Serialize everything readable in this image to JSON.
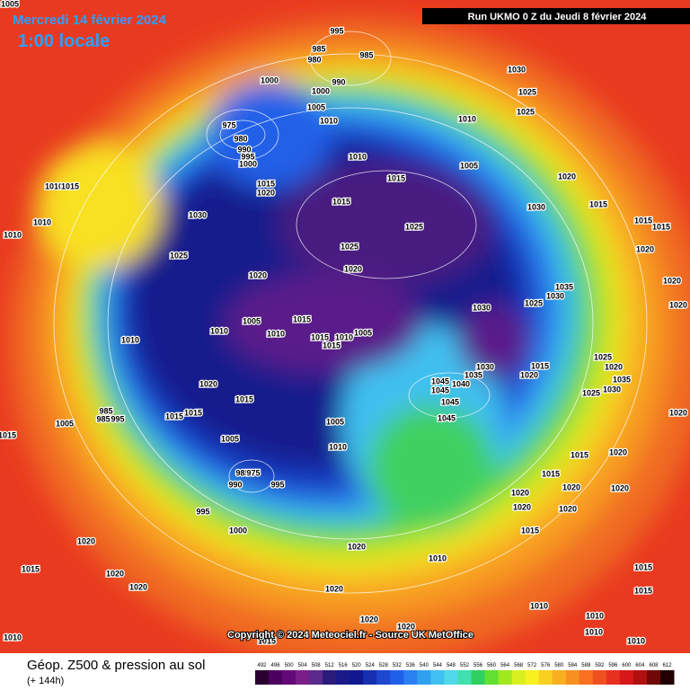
{
  "header": {
    "date": "Mercredi 14 février 2024",
    "local_time": "1:00 locale",
    "run": "Run UKMO 0 Z du Jeudi 8 février 2024"
  },
  "copyright": "Copyright © 2024 Meteociel.fr - Source UK MetOffice",
  "footer": {
    "title": "Géop. Z500 & pression au sol",
    "lead_time": "(+ 144h)"
  },
  "legend": {
    "labels": [
      492,
      496,
      500,
      504,
      508,
      512,
      516,
      520,
      524,
      528,
      532,
      536,
      540,
      544,
      548,
      552,
      556,
      560,
      564,
      568,
      572,
      576,
      580,
      584,
      588,
      592,
      596,
      600,
      604,
      608,
      612
    ],
    "colors": [
      "#2a0030",
      "#4b0060",
      "#640a78",
      "#7a1e8a",
      "#5a2a8c",
      "#2a1a7a",
      "#1a1a8a",
      "#101890",
      "#1830b0",
      "#1e48d0",
      "#2060e8",
      "#2a80f0",
      "#30a0f0",
      "#40c0f0",
      "#50d8e8",
      "#40e0b0",
      "#30d060",
      "#60e030",
      "#a0e820",
      "#d8f020",
      "#f8f020",
      "#f8d020",
      "#f8b020",
      "#f89020",
      "#f87020",
      "#f05020",
      "#e83020",
      "#d81818",
      "#b01010",
      "#700808",
      "#200000"
    ]
  },
  "isobar_labels": [
    995,
    985,
    980,
    985,
    1000,
    990,
    1000,
    1005,
    1010,
    975,
    980,
    990,
    995,
    1000,
    1030,
    1025,
    1025,
    1010,
    1010,
    1005,
    1020,
    1015,
    1015,
    1020,
    1015,
    1030,
    1015,
    1015,
    1015,
    1030,
    1025,
    1020,
    1025,
    1025,
    1020,
    1020,
    1020,
    1035,
    1030,
    1025,
    1020,
    1030,
    1005,
    1015,
    1010,
    1010,
    1015,
    1015,
    1005,
    1010,
    1010,
    1025,
    1015,
    1020,
    1030,
    1035,
    1020,
    1035,
    1030,
    1025,
    1020,
    1045,
    1045,
    1040,
    1015,
    1045,
    1015,
    1015,
    1045,
    985,
    985,
    995,
    1005,
    1005,
    1005,
    1010,
    1015,
    1020,
    1015,
    1020,
    1020,
    985,
    975,
    990,
    995,
    1020,
    1020,
    1015,
    1020,
    995,
    1000,
    1020,
    1020,
    1015,
    1020,
    1020,
    1020,
    1010,
    1015,
    1015,
    1010,
    1010,
    1020,
    1020,
    1010,
    1015,
    1010,
    1010,
    1010,
    1010,
    1010,
    1015,
    1015,
    1020,
    1005
  ]
}
